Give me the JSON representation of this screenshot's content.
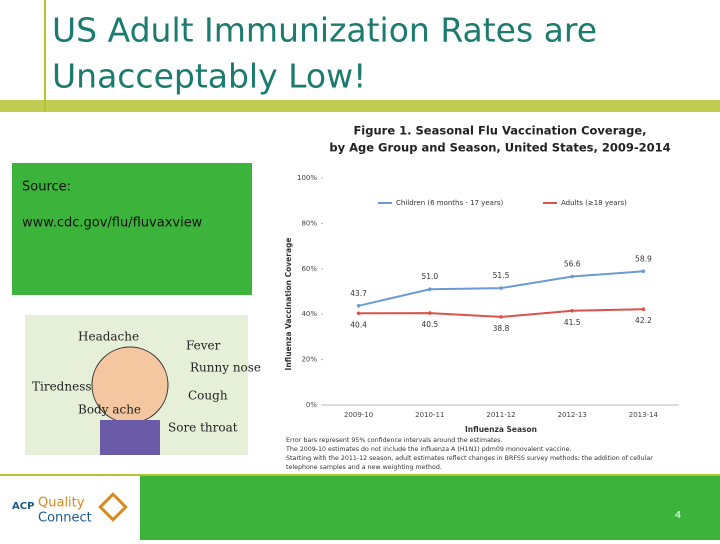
{
  "slide": {
    "title_lines": [
      "US Adult Immunization Rates are",
      "Unacceptably Low!"
    ],
    "source_label": "Source:",
    "source_url": "www.cdc.gov/flu/fluvaxview",
    "symptoms": [
      "Headache",
      "Fever",
      "Runny nose",
      "Tiredness",
      "Cough",
      "Body ache",
      "Sore throat"
    ],
    "logo": {
      "acp": "ACP",
      "line1": "Quality",
      "line2": "Connect"
    },
    "page_number": "4"
  },
  "chart_data": {
    "type": "line",
    "title_lines": [
      "Figure 1. Seasonal Flu Vaccination Coverage,",
      "by Age Group and Season, United States, 2009-2014"
    ],
    "y_label": "Influenza Vaccination Coverage",
    "x_label": "Influenza Season",
    "categories": [
      "2009-10",
      "2010-11",
      "2011-12",
      "2012-13",
      "2013-14"
    ],
    "series": [
      {
        "name": "Children (6 months - 17 years)",
        "color": "#6b9bd1",
        "values": [
          43.7,
          51.0,
          51.5,
          56.6,
          58.9
        ],
        "value_labels": [
          "43.7",
          "51.0",
          "51.5",
          "56.6",
          "58.9"
        ]
      },
      {
        "name": "Adults (≥18 years)",
        "color": "#d9534a",
        "values": [
          40.4,
          40.5,
          38.8,
          41.5,
          42.2
        ],
        "value_labels": [
          "40.4",
          "40.5",
          "38.8",
          "41.5",
          "42.2"
        ]
      }
    ],
    "ylim": [
      0,
      100
    ],
    "yticks": [
      {
        "value": 0,
        "label": "0%"
      },
      {
        "value": 20,
        "label": "20%"
      },
      {
        "value": 40,
        "label": "40%"
      },
      {
        "value": 60,
        "label": "60%"
      },
      {
        "value": 80,
        "label": "80%"
      },
      {
        "value": 100,
        "label": "100%"
      }
    ],
    "footnotes": [
      "Error bars represent 95% confidence intervals around the estimates.",
      "The 2009-10 estimates do not include the influenza A (H1N1) pdm09 monovalent vaccine.",
      "Starting with the 2011-12 season, adult estimates reflect changes in BRFSS survey methods: the addition of cellular",
      "telephone samples and a new weighting method."
    ]
  }
}
